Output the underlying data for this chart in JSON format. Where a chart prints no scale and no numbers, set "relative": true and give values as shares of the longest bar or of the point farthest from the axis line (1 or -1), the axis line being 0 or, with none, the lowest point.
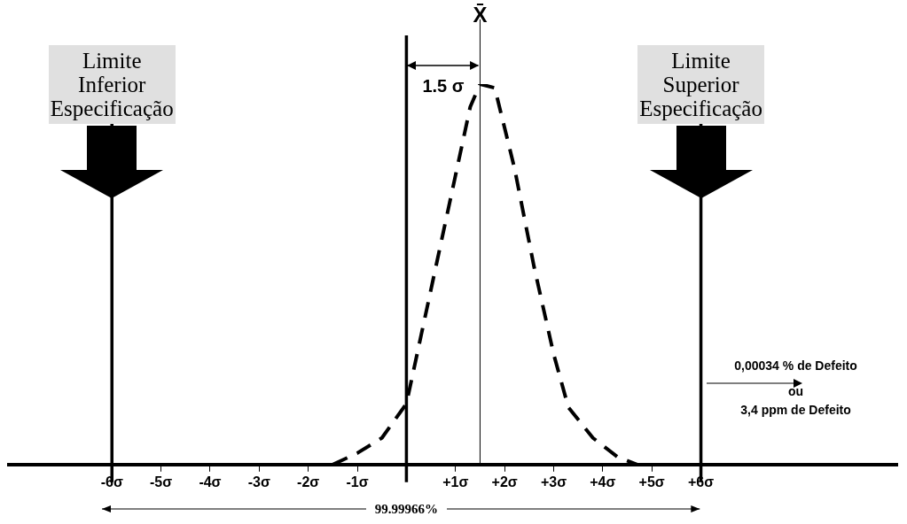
{
  "chart_data": {
    "type": "line",
    "relative": true,
    "xlim": [
      -8.1,
      10
    ],
    "xticks": [
      {
        "value": -6,
        "label": "-6σ"
      },
      {
        "value": -5,
        "label": "-5σ"
      },
      {
        "value": -4,
        "label": "-4σ"
      },
      {
        "value": -3,
        "label": "-3σ"
      },
      {
        "value": -2,
        "label": "-2σ"
      },
      {
        "value": -1,
        "label": "-1σ"
      },
      {
        "value": 1,
        "label": "+1σ"
      },
      {
        "value": 2,
        "label": "+2σ"
      },
      {
        "value": 3,
        "label": "+3σ"
      },
      {
        "value": 4,
        "label": "+4σ"
      },
      {
        "value": 5,
        "label": "+5σ"
      },
      {
        "value": 6,
        "label": "+6σ"
      }
    ],
    "grid": false,
    "legend": false,
    "marker": "none",
    "line_style": "dashed",
    "series": [
      {
        "color": "#000000",
        "x": [
          -1.5,
          -1,
          -0.5,
          0,
          0.3,
          0.6,
          1,
          1.3,
          1.5,
          1.8,
          2.2,
          2.6,
          3,
          3.3,
          3.8,
          4.3,
          4.7
        ],
        "values": [
          0,
          0.03,
          0.07,
          0.16,
          0.34,
          0.52,
          0.76,
          0.94,
          1,
          0.99,
          0.78,
          0.52,
          0.29,
          0.15,
          0.07,
          0.02,
          0
        ]
      }
    ],
    "ref_lines": [
      {
        "axis": "x",
        "value": -6,
        "label": "Limite Inferior Especificação",
        "color": "#000000"
      },
      {
        "axis": "x",
        "value": 0,
        "color": "#000000"
      },
      {
        "axis": "x",
        "value": 1.5,
        "label": "X̄",
        "color": "#000000"
      },
      {
        "axis": "x",
        "value": 6,
        "label": "Limite Superior Especificação",
        "color": "#000000"
      }
    ],
    "annotations": [
      "1.5 σ",
      "99.99966%",
      "0,00034 % de Defeito",
      "ou",
      "3,4 ppm de Defeito"
    ]
  }
}
